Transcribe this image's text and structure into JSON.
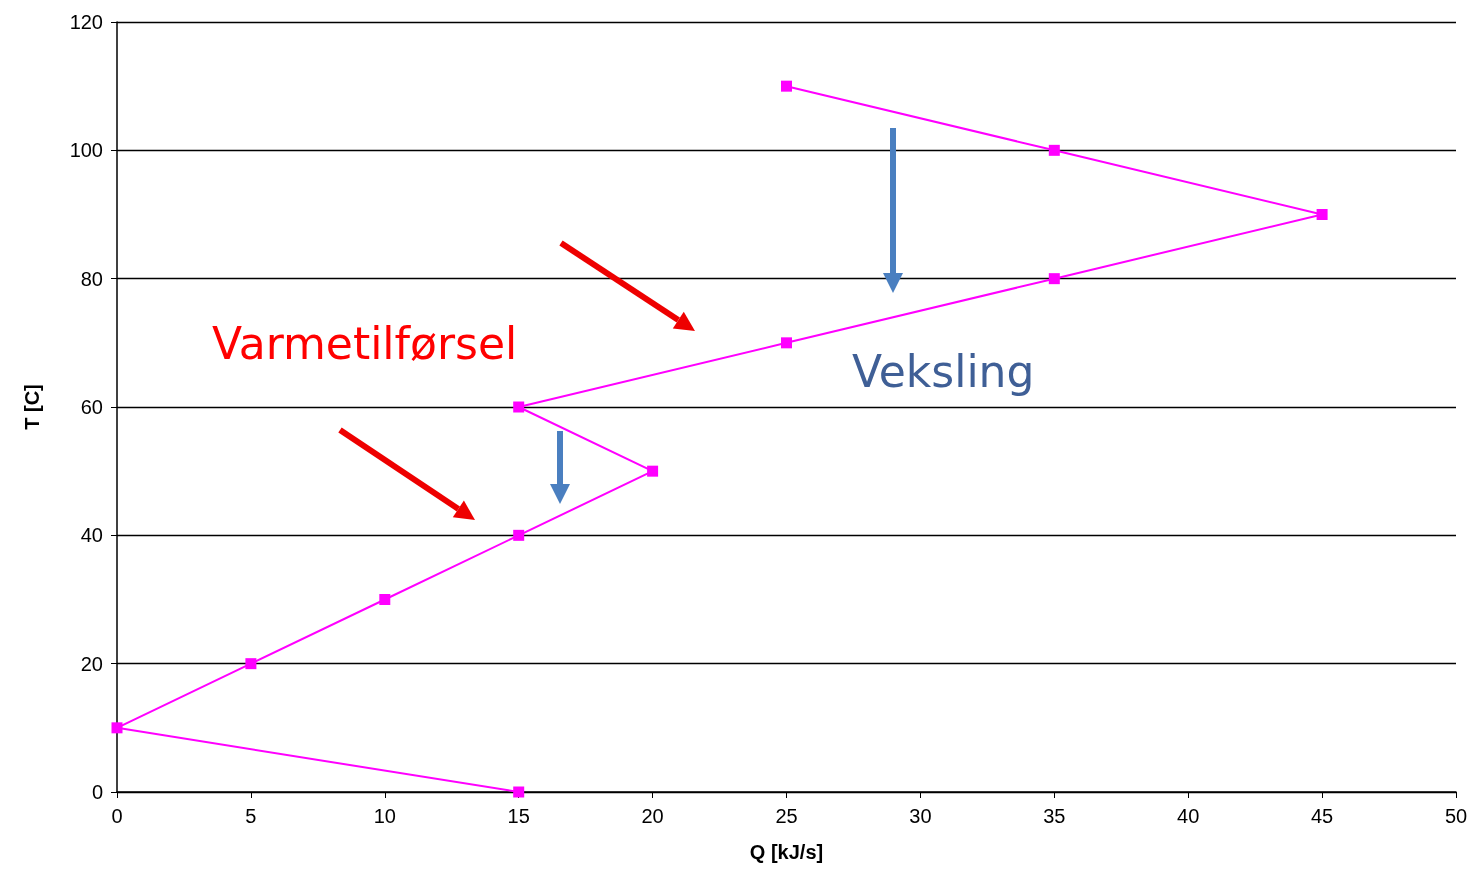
{
  "chart_data": {
    "type": "line",
    "xlabel": "Q [kJ/s]",
    "ylabel": "T [C]",
    "x": [
      15,
      0,
      5,
      10,
      15,
      20,
      15,
      25,
      35,
      45,
      35,
      25
    ],
    "series": [
      {
        "color": "#ff00ff",
        "values": [
          0,
          10,
          20,
          30,
          40,
          50,
          60,
          70,
          80,
          90,
          100,
          110
        ]
      }
    ],
    "xlim": [
      0,
      50
    ],
    "xticks": [
      0,
      5,
      10,
      15,
      20,
      25,
      30,
      35,
      40,
      45,
      50
    ],
    "ylim": [
      0,
      120
    ],
    "yticks": [
      0,
      20,
      40,
      60,
      80,
      100,
      120
    ],
    "grid": "y",
    "marker": "square",
    "line_style": "solid",
    "annotations": [
      "Varmetilførsel",
      "Veksling"
    ]
  }
}
